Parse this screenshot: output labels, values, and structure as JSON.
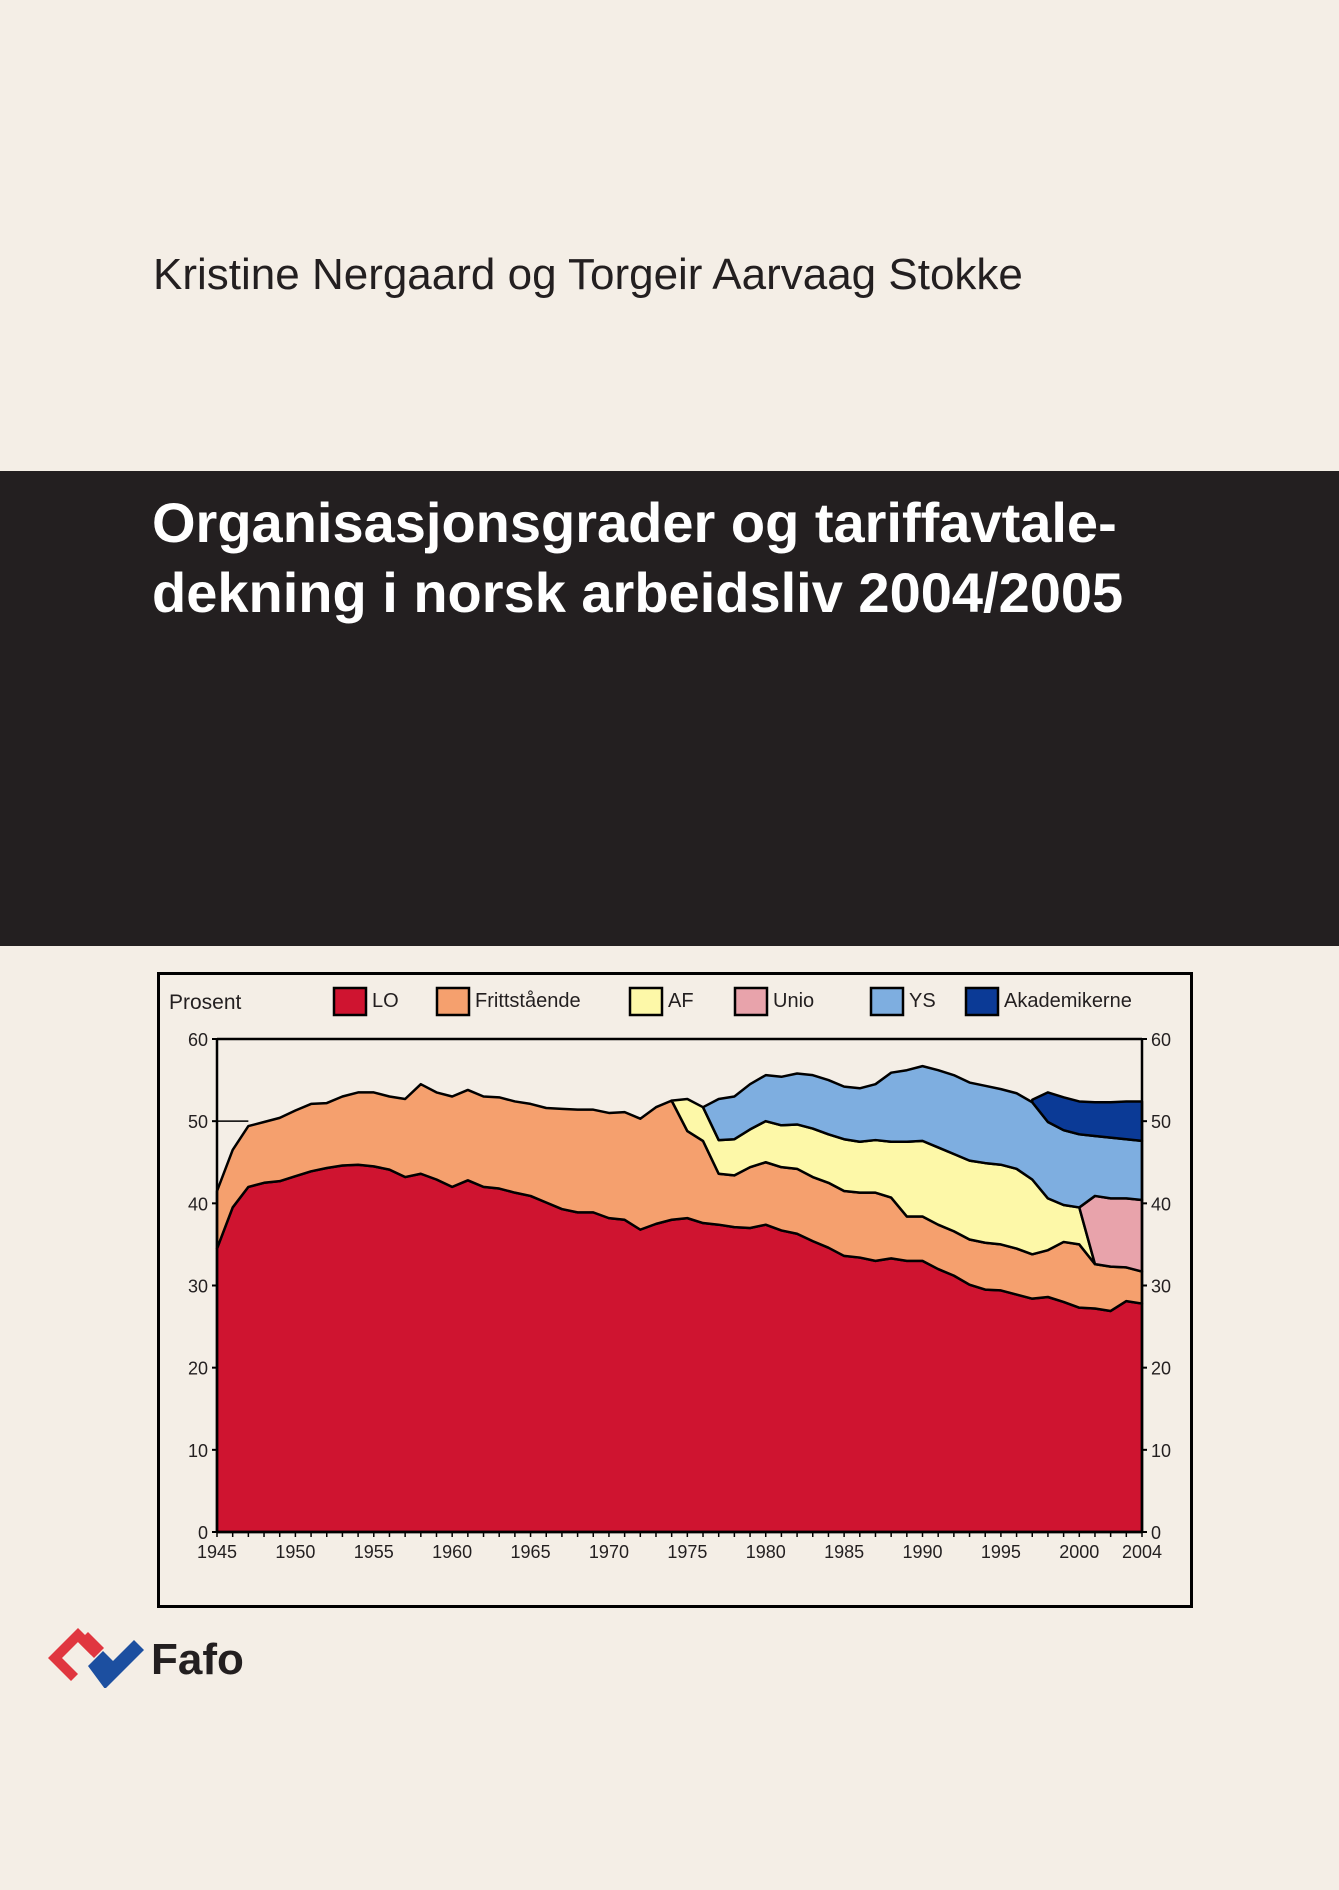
{
  "cover": {
    "authors": "Kristine Nergaard og Torgeir Aarvaag Stokke",
    "title_line1": "Organisasjonsgrader og tariffavtale-",
    "title_line2": "dekning i norsk arbeidsliv 2004/2005",
    "publisher_logo": "Fafo",
    "colors": {
      "background": "#f4eee6",
      "band": "#231f20",
      "logo_red": "#e0363f",
      "logo_blue": "#1c4fa0"
    }
  },
  "chart_data": {
    "type": "area",
    "stacked": true,
    "ylabel": "Prosent",
    "ylim": [
      0,
      60
    ],
    "xlim": [
      1945,
      2004
    ],
    "yticks": [
      "0",
      "10",
      "20",
      "30",
      "40",
      "50",
      "60"
    ],
    "xticks": [
      "1945",
      "1950",
      "1955",
      "1960",
      "1965",
      "1970",
      "1975",
      "1980",
      "1985",
      "1990",
      "1995",
      "2000",
      "2004"
    ],
    "legend_position": "top",
    "grid": false,
    "years": [
      1945,
      1946,
      1947,
      1948,
      1949,
      1950,
      1951,
      1952,
      1953,
      1954,
      1955,
      1956,
      1957,
      1958,
      1959,
      1960,
      1961,
      1962,
      1963,
      1964,
      1965,
      1966,
      1967,
      1968,
      1969,
      1970,
      1971,
      1972,
      1973,
      1974,
      1975,
      1976,
      1977,
      1978,
      1979,
      1980,
      1981,
      1982,
      1983,
      1984,
      1985,
      1986,
      1987,
      1988,
      1989,
      1990,
      1991,
      1992,
      1993,
      1994,
      1995,
      1996,
      1997,
      1998,
      1999,
      2000,
      2001,
      2002,
      2003,
      2004
    ],
    "series": [
      {
        "name": "LO",
        "color": "#cf1430",
        "values": [
          34.5,
          39.5,
          42,
          42.5,
          42.7,
          43.3,
          43.9,
          44.3,
          44.6,
          44.7,
          44.5,
          44.1,
          43.2,
          43.6,
          42.9,
          42,
          42.8,
          42,
          41.8,
          41.3,
          40.9,
          40.1,
          39.3,
          38.9,
          38.9,
          38.2,
          38,
          36.8,
          37.5,
          38,
          38.2,
          37.6,
          37.4,
          37.1,
          37,
          37.4,
          36.7,
          36.3,
          35.4,
          34.6,
          33.6,
          33.4,
          33,
          33.3,
          33,
          33,
          32,
          31.2,
          30.1,
          29.5,
          29.4,
          28.9,
          28.4,
          28.6,
          28,
          27.3,
          27.2,
          26.9,
          28.1,
          27.8
        ]
      },
      {
        "name": "Frittstående",
        "color": "#f5a06e",
        "values": [
          7,
          7,
          7.4,
          7.4,
          7.7,
          8,
          8.2,
          7.9,
          8.4,
          8.8,
          9,
          8.9,
          9.5,
          10.9,
          10.6,
          11,
          11,
          11,
          11.1,
          11.1,
          11.2,
          11.5,
          12.2,
          12.5,
          12.5,
          12.8,
          13.1,
          13.5,
          14.2,
          14.5,
          10.6,
          10,
          6.2,
          6.3,
          7.4,
          7.6,
          7.7,
          7.9,
          7.8,
          7.9,
          7.9,
          7.9,
          8.3,
          7.4,
          5.4,
          5.4,
          5.4,
          5.4,
          5.5,
          5.7,
          5.6,
          5.6,
          5.4,
          5.7,
          7.3,
          7.7,
          5.4,
          5.4,
          4.1,
          3.9
        ]
      },
      {
        "name": "AF",
        "color": "#fdf8a8",
        "values": [
          null,
          null,
          null,
          null,
          null,
          null,
          null,
          null,
          null,
          null,
          null,
          null,
          null,
          null,
          null,
          null,
          null,
          null,
          null,
          null,
          null,
          null,
          null,
          null,
          null,
          null,
          null,
          null,
          null,
          0,
          3.9,
          4.1,
          4.1,
          4.4,
          4.6,
          5,
          5.1,
          5.4,
          5.9,
          5.9,
          6.3,
          6.2,
          6.4,
          6.8,
          9.1,
          9.2,
          9.4,
          9.4,
          9.6,
          9.7,
          9.7,
          9.7,
          9.1,
          6.3,
          4.5,
          4.5,
          0,
          null,
          null,
          null
        ]
      },
      {
        "name": "Unio",
        "color": "#e8a3ab",
        "values": [
          null,
          null,
          null,
          null,
          null,
          null,
          null,
          null,
          null,
          null,
          null,
          null,
          null,
          null,
          null,
          null,
          null,
          null,
          null,
          null,
          null,
          null,
          null,
          null,
          null,
          null,
          null,
          null,
          null,
          null,
          null,
          null,
          null,
          null,
          null,
          null,
          null,
          null,
          null,
          null,
          null,
          null,
          null,
          null,
          null,
          null,
          null,
          null,
          null,
          null,
          null,
          null,
          null,
          null,
          null,
          0,
          8.3,
          8.3,
          8.4,
          8.7
        ]
      },
      {
        "name": "YS",
        "color": "#7eaee0",
        "values": [
          null,
          null,
          null,
          null,
          null,
          null,
          null,
          null,
          null,
          null,
          null,
          null,
          null,
          null,
          null,
          null,
          null,
          null,
          null,
          null,
          null,
          null,
          null,
          null,
          null,
          null,
          null,
          null,
          null,
          null,
          null,
          0,
          5,
          5.2,
          5.5,
          5.6,
          5.9,
          6.2,
          6.5,
          6.6,
          6.4,
          6.5,
          6.8,
          8.4,
          8.7,
          9.1,
          9.4,
          9.6,
          9.5,
          9.4,
          9.2,
          9.2,
          9.4,
          9.3,
          9.1,
          8.9,
          7.3,
          7.4,
          7.2,
          7.2
        ]
      },
      {
        "name": "Akademikerne",
        "color": "#0b3a96",
        "values": [
          null,
          null,
          null,
          null,
          null,
          null,
          null,
          null,
          null,
          null,
          null,
          null,
          null,
          null,
          null,
          null,
          null,
          null,
          null,
          null,
          null,
          null,
          null,
          null,
          null,
          null,
          null,
          null,
          null,
          null,
          null,
          null,
          null,
          null,
          null,
          null,
          null,
          null,
          null,
          null,
          null,
          null,
          null,
          null,
          null,
          null,
          null,
          null,
          null,
          null,
          null,
          null,
          0.3,
          3.6,
          4,
          4,
          4.1,
          4.3,
          4.6,
          4.8
        ]
      }
    ]
  }
}
